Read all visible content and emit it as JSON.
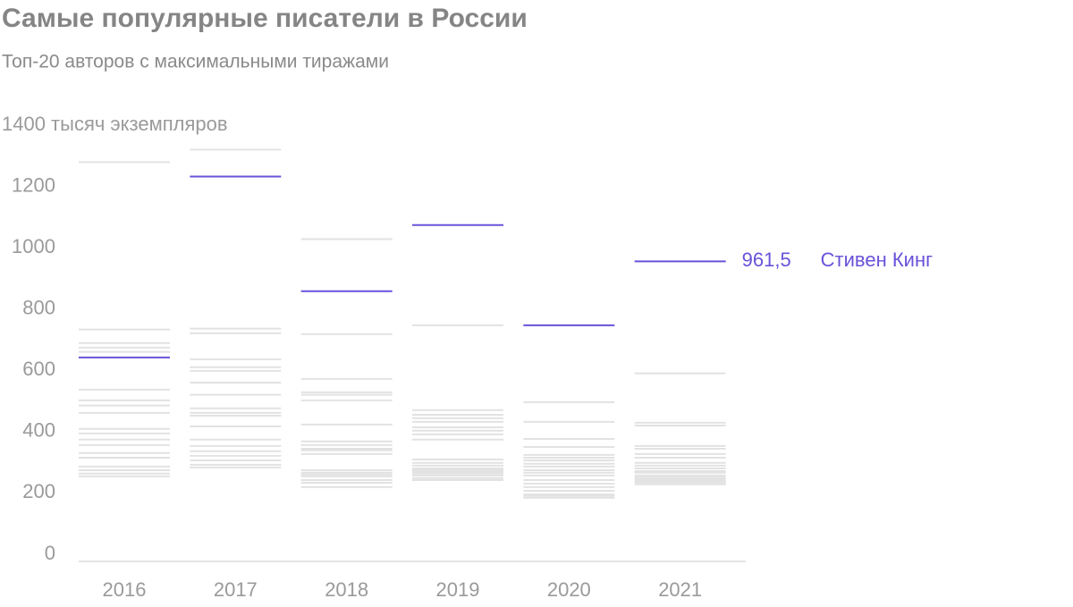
{
  "chart_data": {
    "type": "strip",
    "title": "Самые популярные писатели в России",
    "subtitle": "Топ-20 авторов с максимальными тиражами",
    "categories": [
      "2016",
      "2017",
      "2018",
      "2019",
      "2020",
      "2021"
    ],
    "ylim": [
      0,
      1400
    ],
    "yticks": [
      0,
      200,
      400,
      600,
      800,
      1000,
      1200,
      {
        "value": 1400,
        "label": "1400 тысяч экземпляров"
      }
    ],
    "series": [
      {
        "name": "Стивен Кинг",
        "color": "#6a52d9",
        "values": [
          648,
          1238,
          864,
          1080,
          753,
          961.5
        ],
        "value_labels": [
          null,
          null,
          null,
          null,
          null,
          "961,5"
        ]
      }
    ],
    "others": {
      "color": "#e2e2e2",
      "values": [
        [
          1285,
          739,
          695,
          680,
          666,
          543,
          508,
          491,
          467,
          415,
          400,
          380,
          362,
          336,
          321,
          292,
          280,
          269,
          260
        ],
        [
          1326,
          742,
          727,
          642,
          616,
          604,
          566,
          526,
          482,
          467,
          458,
          423,
          380,
          359,
          342,
          327,
          312,
          298,
          289
        ],
        [
          1034,
          724,
          578,
          534,
          526,
          508,
          429,
          374,
          362,
          350,
          345,
          333,
          280,
          272,
          266,
          260,
          248,
          239,
          225
        ],
        [
          753,
          476,
          461,
          450,
          438,
          420,
          409,
          397,
          380,
          315,
          304,
          295,
          286,
          280,
          274,
          269,
          263,
          254,
          248
        ],
        [
          502,
          438,
          382,
          356,
          330,
          321,
          312,
          301,
          292,
          280,
          272,
          263,
          248,
          236,
          225,
          213,
          201,
          196,
          190
        ],
        [
          596,
          435,
          426,
          359,
          350,
          333,
          321,
          304,
          295,
          286,
          277,
          272,
          263,
          257,
          251,
          245,
          242,
          236,
          234
        ]
      ]
    }
  }
}
